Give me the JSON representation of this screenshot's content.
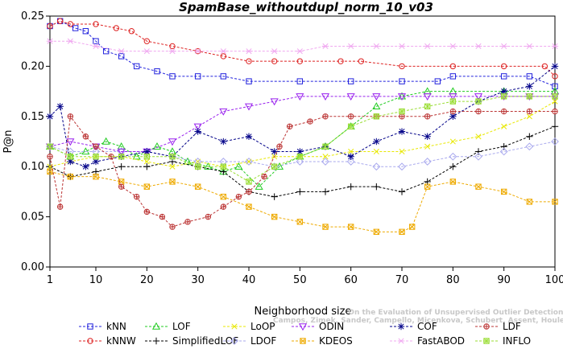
{
  "chart_data": {
    "type": "line",
    "title": "SpamBase_withoutdupl_norm_10_v03",
    "xlabel": "Neighborhood size",
    "ylabel": "P@n",
    "xlim": [
      1,
      100
    ],
    "ylim": [
      0,
      0.25
    ],
    "xticks": [
      1,
      10,
      20,
      30,
      40,
      50,
      60,
      70,
      80,
      90,
      100
    ],
    "yticks": [
      "0.00",
      "0.05",
      "0.10",
      "0.15",
      "0.20",
      "0.25"
    ],
    "watermark": [
      "Campos, Zimek, Sander, Campello, Micenkova, Schubert, Assent, Houle",
      "On the Evaluation of Unsupervised Outlier Detection. DAMI, 2015."
    ],
    "legend_position": "bottom",
    "series": [
      {
        "name": "kNN",
        "color": "#2222dd",
        "marker": "square",
        "points": [
          [
            1,
            0.24
          ],
          [
            3,
            0.245
          ],
          [
            6,
            0.238
          ],
          [
            8,
            0.235
          ],
          [
            10,
            0.225
          ],
          [
            12,
            0.215
          ],
          [
            15,
            0.21
          ],
          [
            18,
            0.2
          ],
          [
            22,
            0.195
          ],
          [
            25,
            0.19
          ],
          [
            30,
            0.19
          ],
          [
            35,
            0.19
          ],
          [
            40,
            0.185
          ],
          [
            50,
            0.185
          ],
          [
            60,
            0.185
          ],
          [
            70,
            0.185
          ],
          [
            77,
            0.185
          ],
          [
            80,
            0.19
          ],
          [
            90,
            0.19
          ],
          [
            95,
            0.19
          ],
          [
            100,
            0.18
          ]
        ]
      },
      {
        "name": "kNNW",
        "color": "#dd2222",
        "marker": "circle",
        "points": [
          [
            1,
            0.24
          ],
          [
            3,
            0.245
          ],
          [
            5,
            0.242
          ],
          [
            10,
            0.242
          ],
          [
            14,
            0.238
          ],
          [
            17,
            0.235
          ],
          [
            20,
            0.225
          ],
          [
            25,
            0.22
          ],
          [
            30,
            0.215
          ],
          [
            35,
            0.21
          ],
          [
            40,
            0.205
          ],
          [
            45,
            0.205
          ],
          [
            50,
            0.205
          ],
          [
            58,
            0.205
          ],
          [
            62,
            0.205
          ],
          [
            70,
            0.2
          ],
          [
            80,
            0.2
          ],
          [
            90,
            0.2
          ],
          [
            98,
            0.2
          ],
          [
            100,
            0.19
          ]
        ]
      },
      {
        "name": "LOF",
        "color": "#22cc22",
        "marker": "triangle-up",
        "points": [
          [
            1,
            0.12
          ],
          [
            5,
            0.11
          ],
          [
            8,
            0.115
          ],
          [
            12,
            0.125
          ],
          [
            15,
            0.12
          ],
          [
            18,
            0.11
          ],
          [
            22,
            0.12
          ],
          [
            25,
            0.115
          ],
          [
            28,
            0.105
          ],
          [
            32,
            0.1
          ],
          [
            35,
            0.095
          ],
          [
            38,
            0.1
          ],
          [
            42,
            0.08
          ],
          [
            46,
            0.1
          ],
          [
            50,
            0.11
          ],
          [
            55,
            0.12
          ],
          [
            60,
            0.14
          ],
          [
            65,
            0.16
          ],
          [
            70,
            0.17
          ],
          [
            75,
            0.175
          ],
          [
            80,
            0.175
          ],
          [
            90,
            0.175
          ],
          [
            100,
            0.175
          ]
        ]
      },
      {
        "name": "SimplifiedLOF",
        "color": "#000000",
        "marker": "plus",
        "points": [
          [
            1,
            0.1
          ],
          [
            5,
            0.09
          ],
          [
            10,
            0.095
          ],
          [
            15,
            0.1
          ],
          [
            20,
            0.1
          ],
          [
            25,
            0.105
          ],
          [
            30,
            0.1
          ],
          [
            35,
            0.095
          ],
          [
            40,
            0.075
          ],
          [
            45,
            0.07
          ],
          [
            50,
            0.075
          ],
          [
            55,
            0.075
          ],
          [
            60,
            0.08
          ],
          [
            65,
            0.08
          ],
          [
            70,
            0.075
          ],
          [
            75,
            0.085
          ],
          [
            80,
            0.1
          ],
          [
            85,
            0.115
          ],
          [
            90,
            0.12
          ],
          [
            95,
            0.13
          ],
          [
            100,
            0.14
          ]
        ]
      },
      {
        "name": "LoOP",
        "color": "#e8e800",
        "marker": "x",
        "points": [
          [
            1,
            0.1
          ],
          [
            5,
            0.105
          ],
          [
            10,
            0.11
          ],
          [
            15,
            0.11
          ],
          [
            20,
            0.105
          ],
          [
            25,
            0.1
          ],
          [
            30,
            0.105
          ],
          [
            35,
            0.1
          ],
          [
            40,
            0.105
          ],
          [
            45,
            0.11
          ],
          [
            50,
            0.11
          ],
          [
            55,
            0.11
          ],
          [
            60,
            0.115
          ],
          [
            65,
            0.115
          ],
          [
            70,
            0.115
          ],
          [
            75,
            0.12
          ],
          [
            80,
            0.125
          ],
          [
            85,
            0.13
          ],
          [
            90,
            0.14
          ],
          [
            95,
            0.15
          ],
          [
            100,
            0.165
          ]
        ]
      },
      {
        "name": "LDOF",
        "color": "#aaaaee",
        "marker": "diamond",
        "points": [
          [
            1,
            0.12
          ],
          [
            5,
            0.115
          ],
          [
            10,
            0.115
          ],
          [
            15,
            0.115
          ],
          [
            20,
            0.115
          ],
          [
            25,
            0.11
          ],
          [
            30,
            0.105
          ],
          [
            35,
            0.105
          ],
          [
            40,
            0.105
          ],
          [
            45,
            0.1
          ],
          [
            50,
            0.105
          ],
          [
            55,
            0.105
          ],
          [
            60,
            0.105
          ],
          [
            65,
            0.1
          ],
          [
            70,
            0.1
          ],
          [
            75,
            0.105
          ],
          [
            80,
            0.11
          ],
          [
            85,
            0.11
          ],
          [
            90,
            0.115
          ],
          [
            95,
            0.12
          ],
          [
            100,
            0.125
          ]
        ]
      },
      {
        "name": "ODIN",
        "color": "#9922ee",
        "marker": "triangle-down",
        "points": [
          [
            1,
            0.12
          ],
          [
            5,
            0.125
          ],
          [
            10,
            0.12
          ],
          [
            15,
            0.115
          ],
          [
            20,
            0.115
          ],
          [
            25,
            0.125
          ],
          [
            30,
            0.14
          ],
          [
            35,
            0.155
          ],
          [
            40,
            0.16
          ],
          [
            45,
            0.165
          ],
          [
            50,
            0.17
          ],
          [
            55,
            0.17
          ],
          [
            60,
            0.17
          ],
          [
            65,
            0.17
          ],
          [
            70,
            0.17
          ],
          [
            75,
            0.17
          ],
          [
            80,
            0.17
          ],
          [
            85,
            0.17
          ],
          [
            90,
            0.17
          ],
          [
            95,
            0.17
          ],
          [
            100,
            0.17
          ]
        ]
      },
      {
        "name": "KDEOS",
        "color": "#eeaa00",
        "marker": "square-x",
        "points": [
          [
            1,
            0.095
          ],
          [
            5,
            0.09
          ],
          [
            10,
            0.09
          ],
          [
            15,
            0.085
          ],
          [
            20,
            0.08
          ],
          [
            25,
            0.085
          ],
          [
            30,
            0.08
          ],
          [
            35,
            0.07
          ],
          [
            40,
            0.06
          ],
          [
            45,
            0.05
          ],
          [
            50,
            0.045
          ],
          [
            55,
            0.04
          ],
          [
            60,
            0.04
          ],
          [
            65,
            0.035
          ],
          [
            70,
            0.035
          ],
          [
            72,
            0.04
          ],
          [
            75,
            0.08
          ],
          [
            80,
            0.085
          ],
          [
            85,
            0.08
          ],
          [
            90,
            0.075
          ],
          [
            95,
            0.065
          ],
          [
            100,
            0.065
          ]
        ]
      },
      {
        "name": "COF",
        "color": "#000088",
        "marker": "asterisk",
        "points": [
          [
            1,
            0.15
          ],
          [
            3,
            0.16
          ],
          [
            5,
            0.105
          ],
          [
            8,
            0.1
          ],
          [
            10,
            0.105
          ],
          [
            15,
            0.11
          ],
          [
            20,
            0.115
          ],
          [
            25,
            0.11
          ],
          [
            30,
            0.135
          ],
          [
            35,
            0.125
          ],
          [
            40,
            0.13
          ],
          [
            45,
            0.115
          ],
          [
            50,
            0.115
          ],
          [
            55,
            0.12
          ],
          [
            60,
            0.11
          ],
          [
            65,
            0.125
          ],
          [
            70,
            0.135
          ],
          [
            75,
            0.13
          ],
          [
            80,
            0.15
          ],
          [
            85,
            0.165
          ],
          [
            90,
            0.175
          ],
          [
            95,
            0.18
          ],
          [
            100,
            0.2
          ]
        ]
      },
      {
        "name": "FastABOD",
        "color": "#f0a8f0",
        "marker": "star",
        "points": [
          [
            1,
            0.225
          ],
          [
            5,
            0.225
          ],
          [
            10,
            0.22
          ],
          [
            15,
            0.215
          ],
          [
            20,
            0.215
          ],
          [
            25,
            0.215
          ],
          [
            30,
            0.215
          ],
          [
            35,
            0.215
          ],
          [
            40,
            0.215
          ],
          [
            45,
            0.215
          ],
          [
            50,
            0.215
          ],
          [
            55,
            0.22
          ],
          [
            60,
            0.22
          ],
          [
            65,
            0.22
          ],
          [
            70,
            0.22
          ],
          [
            75,
            0.22
          ],
          [
            80,
            0.22
          ],
          [
            85,
            0.22
          ],
          [
            90,
            0.22
          ],
          [
            95,
            0.22
          ],
          [
            100,
            0.22
          ]
        ]
      },
      {
        "name": "LDF",
        "color": "#bb3333",
        "marker": "circle-plus",
        "points": [
          [
            1,
            0.11
          ],
          [
            3,
            0.06
          ],
          [
            5,
            0.15
          ],
          [
            8,
            0.13
          ],
          [
            10,
            0.12
          ],
          [
            13,
            0.11
          ],
          [
            15,
            0.08
          ],
          [
            18,
            0.07
          ],
          [
            20,
            0.055
          ],
          [
            23,
            0.05
          ],
          [
            25,
            0.04
          ],
          [
            28,
            0.045
          ],
          [
            32,
            0.05
          ],
          [
            35,
            0.06
          ],
          [
            38,
            0.07
          ],
          [
            40,
            0.075
          ],
          [
            43,
            0.09
          ],
          [
            46,
            0.12
          ],
          [
            48,
            0.14
          ],
          [
            52,
            0.145
          ],
          [
            55,
            0.15
          ],
          [
            60,
            0.15
          ],
          [
            65,
            0.15
          ],
          [
            70,
            0.15
          ],
          [
            75,
            0.15
          ],
          [
            80,
            0.155
          ],
          [
            85,
            0.155
          ],
          [
            90,
            0.155
          ],
          [
            95,
            0.155
          ],
          [
            100,
            0.155
          ]
        ]
      },
      {
        "name": "INFLO",
        "color": "#99dd33",
        "marker": "square-star",
        "points": [
          [
            1,
            0.12
          ],
          [
            5,
            0.11
          ],
          [
            10,
            0.11
          ],
          [
            15,
            0.11
          ],
          [
            20,
            0.11
          ],
          [
            25,
            0.11
          ],
          [
            30,
            0.1
          ],
          [
            35,
            0.1
          ],
          [
            40,
            0.085
          ],
          [
            45,
            0.1
          ],
          [
            50,
            0.11
          ],
          [
            55,
            0.12
          ],
          [
            60,
            0.14
          ],
          [
            65,
            0.15
          ],
          [
            70,
            0.155
          ],
          [
            75,
            0.16
          ],
          [
            80,
            0.165
          ],
          [
            85,
            0.165
          ],
          [
            90,
            0.17
          ],
          [
            95,
            0.17
          ],
          [
            100,
            0.17
          ]
        ]
      }
    ]
  }
}
